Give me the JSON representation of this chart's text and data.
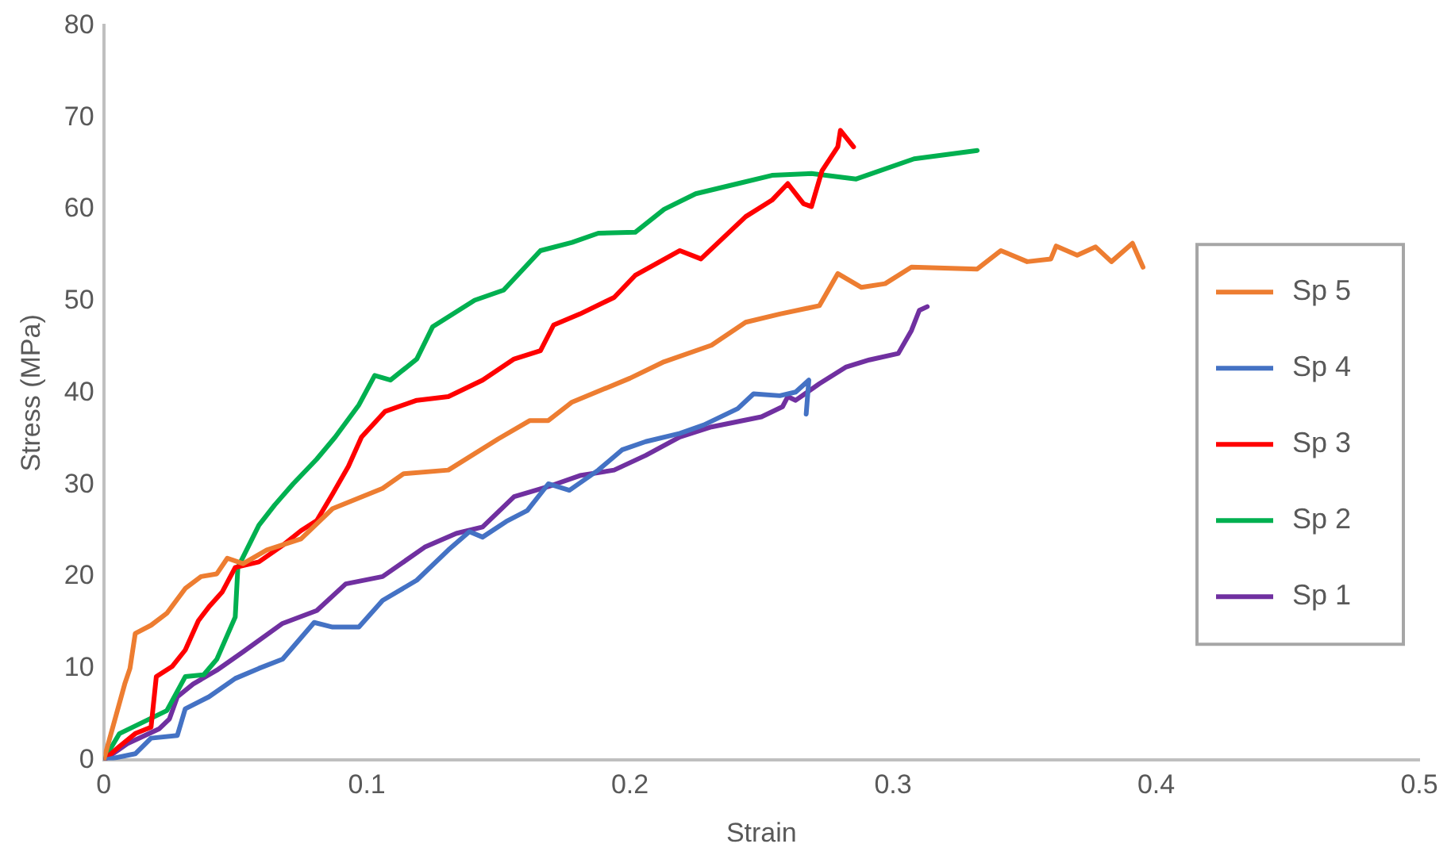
{
  "chart_data": {
    "type": "line",
    "xlabel": "Strain",
    "ylabel": "Stress (MPa)",
    "xlim": [
      0,
      0.5
    ],
    "xticks": [
      0,
      0.1,
      0.2,
      0.3,
      0.4,
      0.5
    ],
    "ylim": [
      0,
      80
    ],
    "yticks": [
      0,
      10,
      20,
      30,
      40,
      50,
      60,
      70,
      80
    ],
    "grid": false,
    "legend": "right",
    "marker": "none",
    "line_style": "solid",
    "series": [
      {
        "name": "Sp 5",
        "color": "#ed7d31",
        "x": [
          0,
          0.008,
          0.01,
          0.012,
          0.018,
          0.024,
          0.031,
          0.037,
          0.043,
          0.047,
          0.053,
          0.062,
          0.075,
          0.087,
          0.106,
          0.114,
          0.131,
          0.15,
          0.162,
          0.169,
          0.178,
          0.2,
          0.213,
          0.231,
          0.244,
          0.257,
          0.272,
          0.279,
          0.288,
          0.297,
          0.307,
          0.332,
          0.341,
          0.351,
          0.36,
          0.362,
          0.37,
          0.377,
          0.383,
          0.391,
          0.395
        ],
        "values": [
          0,
          8.3,
          10,
          13.8,
          14.7,
          16,
          18.7,
          20,
          20.3,
          22,
          21.4,
          22.9,
          24.1,
          27.4,
          29.6,
          31.2,
          31.6,
          35,
          37,
          37,
          39,
          41.6,
          43.4,
          45.2,
          47.7,
          48.6,
          49.5,
          53,
          51.5,
          51.9,
          53.7,
          53.5,
          55.5,
          54.3,
          54.6,
          56,
          55,
          55.9,
          54.3,
          56.3,
          53.7
        ]
      },
      {
        "name": "Sp 4",
        "color": "#4472c4",
        "x": [
          0,
          0.012,
          0.018,
          0.028,
          0.031,
          0.04,
          0.05,
          0.059,
          0.068,
          0.08,
          0.087,
          0.097,
          0.106,
          0.119,
          0.131,
          0.139,
          0.144,
          0.153,
          0.161,
          0.169,
          0.177,
          0.188,
          0.197,
          0.206,
          0.219,
          0.228,
          0.241,
          0.247,
          0.257,
          0.263,
          0.268,
          0.267
        ],
        "values": [
          0,
          0.7,
          2.4,
          2.7,
          5.6,
          6.9,
          8.9,
          10,
          11,
          15,
          14.5,
          14.5,
          17.4,
          19.6,
          22.9,
          24.9,
          24.3,
          26,
          27.2,
          30.1,
          29.4,
          31.6,
          33.8,
          34.7,
          35.6,
          36.5,
          38.3,
          39.9,
          39.7,
          40.1,
          41.4,
          37.7
        ]
      },
      {
        "name": "Sp 3",
        "color": "#ff0000",
        "x": [
          0,
          0.006,
          0.012,
          0.018,
          0.02,
          0.026,
          0.031,
          0.036,
          0.04,
          0.045,
          0.05,
          0.059,
          0.068,
          0.075,
          0.081,
          0.087,
          0.093,
          0.098,
          0.107,
          0.119,
          0.131,
          0.144,
          0.156,
          0.166,
          0.171,
          0.181,
          0.194,
          0.202,
          0.219,
          0.227,
          0.244,
          0.254,
          0.26,
          0.266,
          0.269,
          0.273,
          0.279,
          0.28,
          0.285
        ],
        "values": [
          0,
          1.5,
          2.9,
          3.6,
          9.1,
          10.2,
          12,
          15.2,
          16.7,
          18.3,
          21,
          21.6,
          23.4,
          25,
          26.1,
          29,
          32,
          35.2,
          38,
          39.2,
          39.6,
          41.4,
          43.7,
          44.6,
          47.4,
          48.6,
          50.4,
          52.8,
          55.5,
          54.6,
          59.2,
          61,
          62.8,
          60.6,
          60.3,
          64.2,
          66.8,
          68.6,
          66.8
        ]
      },
      {
        "name": "Sp 2",
        "color": "#00b050",
        "x": [
          0,
          0.006,
          0.024,
          0.031,
          0.038,
          0.043,
          0.05,
          0.051,
          0.059,
          0.065,
          0.072,
          0.081,
          0.088,
          0.097,
          0.103,
          0.109,
          0.119,
          0.125,
          0.141,
          0.152,
          0.166,
          0.178,
          0.188,
          0.202,
          0.213,
          0.225,
          0.241,
          0.254,
          0.269,
          0.286,
          0.308,
          0.332
        ],
        "values": [
          0,
          2.9,
          5.4,
          9.1,
          9.3,
          11,
          15.6,
          21,
          25.6,
          27.8,
          30.1,
          32.8,
          35.2,
          38.7,
          41.9,
          41.4,
          43.7,
          47.2,
          50.1,
          51.2,
          55.5,
          56.4,
          57.4,
          57.5,
          60,
          61.7,
          62.8,
          63.7,
          63.9,
          63.3,
          65.5,
          66.4
        ]
      },
      {
        "name": "Sp 1",
        "color": "#7030a0",
        "x": [
          0,
          0.009,
          0.021,
          0.025,
          0.028,
          0.034,
          0.043,
          0.053,
          0.068,
          0.081,
          0.092,
          0.106,
          0.122,
          0.134,
          0.144,
          0.156,
          0.169,
          0.181,
          0.194,
          0.206,
          0.219,
          0.231,
          0.25,
          0.258,
          0.26,
          0.263,
          0.272,
          0.282,
          0.291,
          0.302,
          0.307,
          0.31,
          0.313
        ],
        "values": [
          0,
          1.8,
          3.4,
          4.5,
          6.9,
          8.3,
          9.8,
          11.8,
          14.9,
          16.3,
          19.2,
          20,
          23.2,
          24.7,
          25.4,
          28.7,
          29.8,
          31,
          31.6,
          33.2,
          35.2,
          36.3,
          37.4,
          38.5,
          39.6,
          39.2,
          41,
          42.8,
          43.6,
          44.3,
          46.8,
          49,
          49.4
        ]
      }
    ]
  }
}
